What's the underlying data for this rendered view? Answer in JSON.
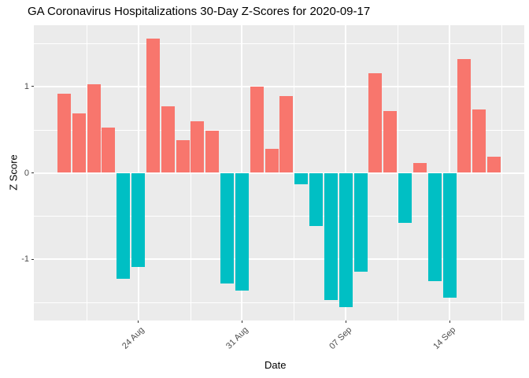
{
  "chart_data": {
    "type": "bar",
    "title": "GA Coronavirus Hospitalizations 30-Day Z-Scores for 2020-09-17",
    "xlabel": "Date",
    "ylabel": "Z Score",
    "legend_position": "none",
    "grid": "on",
    "ylim": [
      -1.705,
      1.705
    ],
    "bar_color_rule": "positive values red, negative values teal",
    "dates": [
      "2020-08-19",
      "2020-08-20",
      "2020-08-21",
      "2020-08-22",
      "2020-08-23",
      "2020-08-24",
      "2020-08-25",
      "2020-08-26",
      "2020-08-27",
      "2020-08-28",
      "2020-08-29",
      "2020-08-30",
      "2020-08-31",
      "2020-09-01",
      "2020-09-02",
      "2020-09-03",
      "2020-09-04",
      "2020-09-05",
      "2020-09-06",
      "2020-09-07",
      "2020-09-08",
      "2020-09-09",
      "2020-09-10",
      "2020-09-11",
      "2020-09-12",
      "2020-09-13",
      "2020-09-14",
      "2020-09-15",
      "2020-09-16",
      "2020-09-17"
    ],
    "values": [
      0.91,
      0.69,
      1.02,
      0.52,
      -1.22,
      -1.09,
      1.55,
      0.77,
      0.38,
      0.6,
      0.49,
      -1.28,
      -1.36,
      1.0,
      0.28,
      0.89,
      -0.13,
      -0.61,
      -1.47,
      -1.55,
      -1.14,
      1.15,
      0.71,
      -0.58,
      0.11,
      -1.25,
      -1.44,
      1.31,
      0.73,
      0.19
    ],
    "x_ticks": [
      {
        "label": "24 Aug",
        "day_index": 5
      },
      {
        "label": "31 Aug",
        "day_index": 12
      },
      {
        "label": "07 Sep",
        "day_index": 19
      },
      {
        "label": "14 Sep",
        "day_index": 26
      }
    ],
    "x_minor_day_idx": [
      1.5,
      8.5,
      15.5,
      22.5,
      29.5
    ],
    "y_ticks": [
      {
        "label": "1",
        "value": 1
      },
      {
        "label": "0",
        "value": 0
      },
      {
        "label": "-1",
        "value": -1
      }
    ],
    "y_minor": [
      1.5,
      0.5,
      -0.5,
      -1.5
    ],
    "colors": {
      "positive_bar": "#F8766D",
      "negative_bar": "#00BFC4",
      "panel_background": "#EBEBEB",
      "gridline": "#FFFFFF",
      "tick_text": "#4D4D4D",
      "tick_mark": "#333333",
      "title_text": "#000000"
    }
  }
}
